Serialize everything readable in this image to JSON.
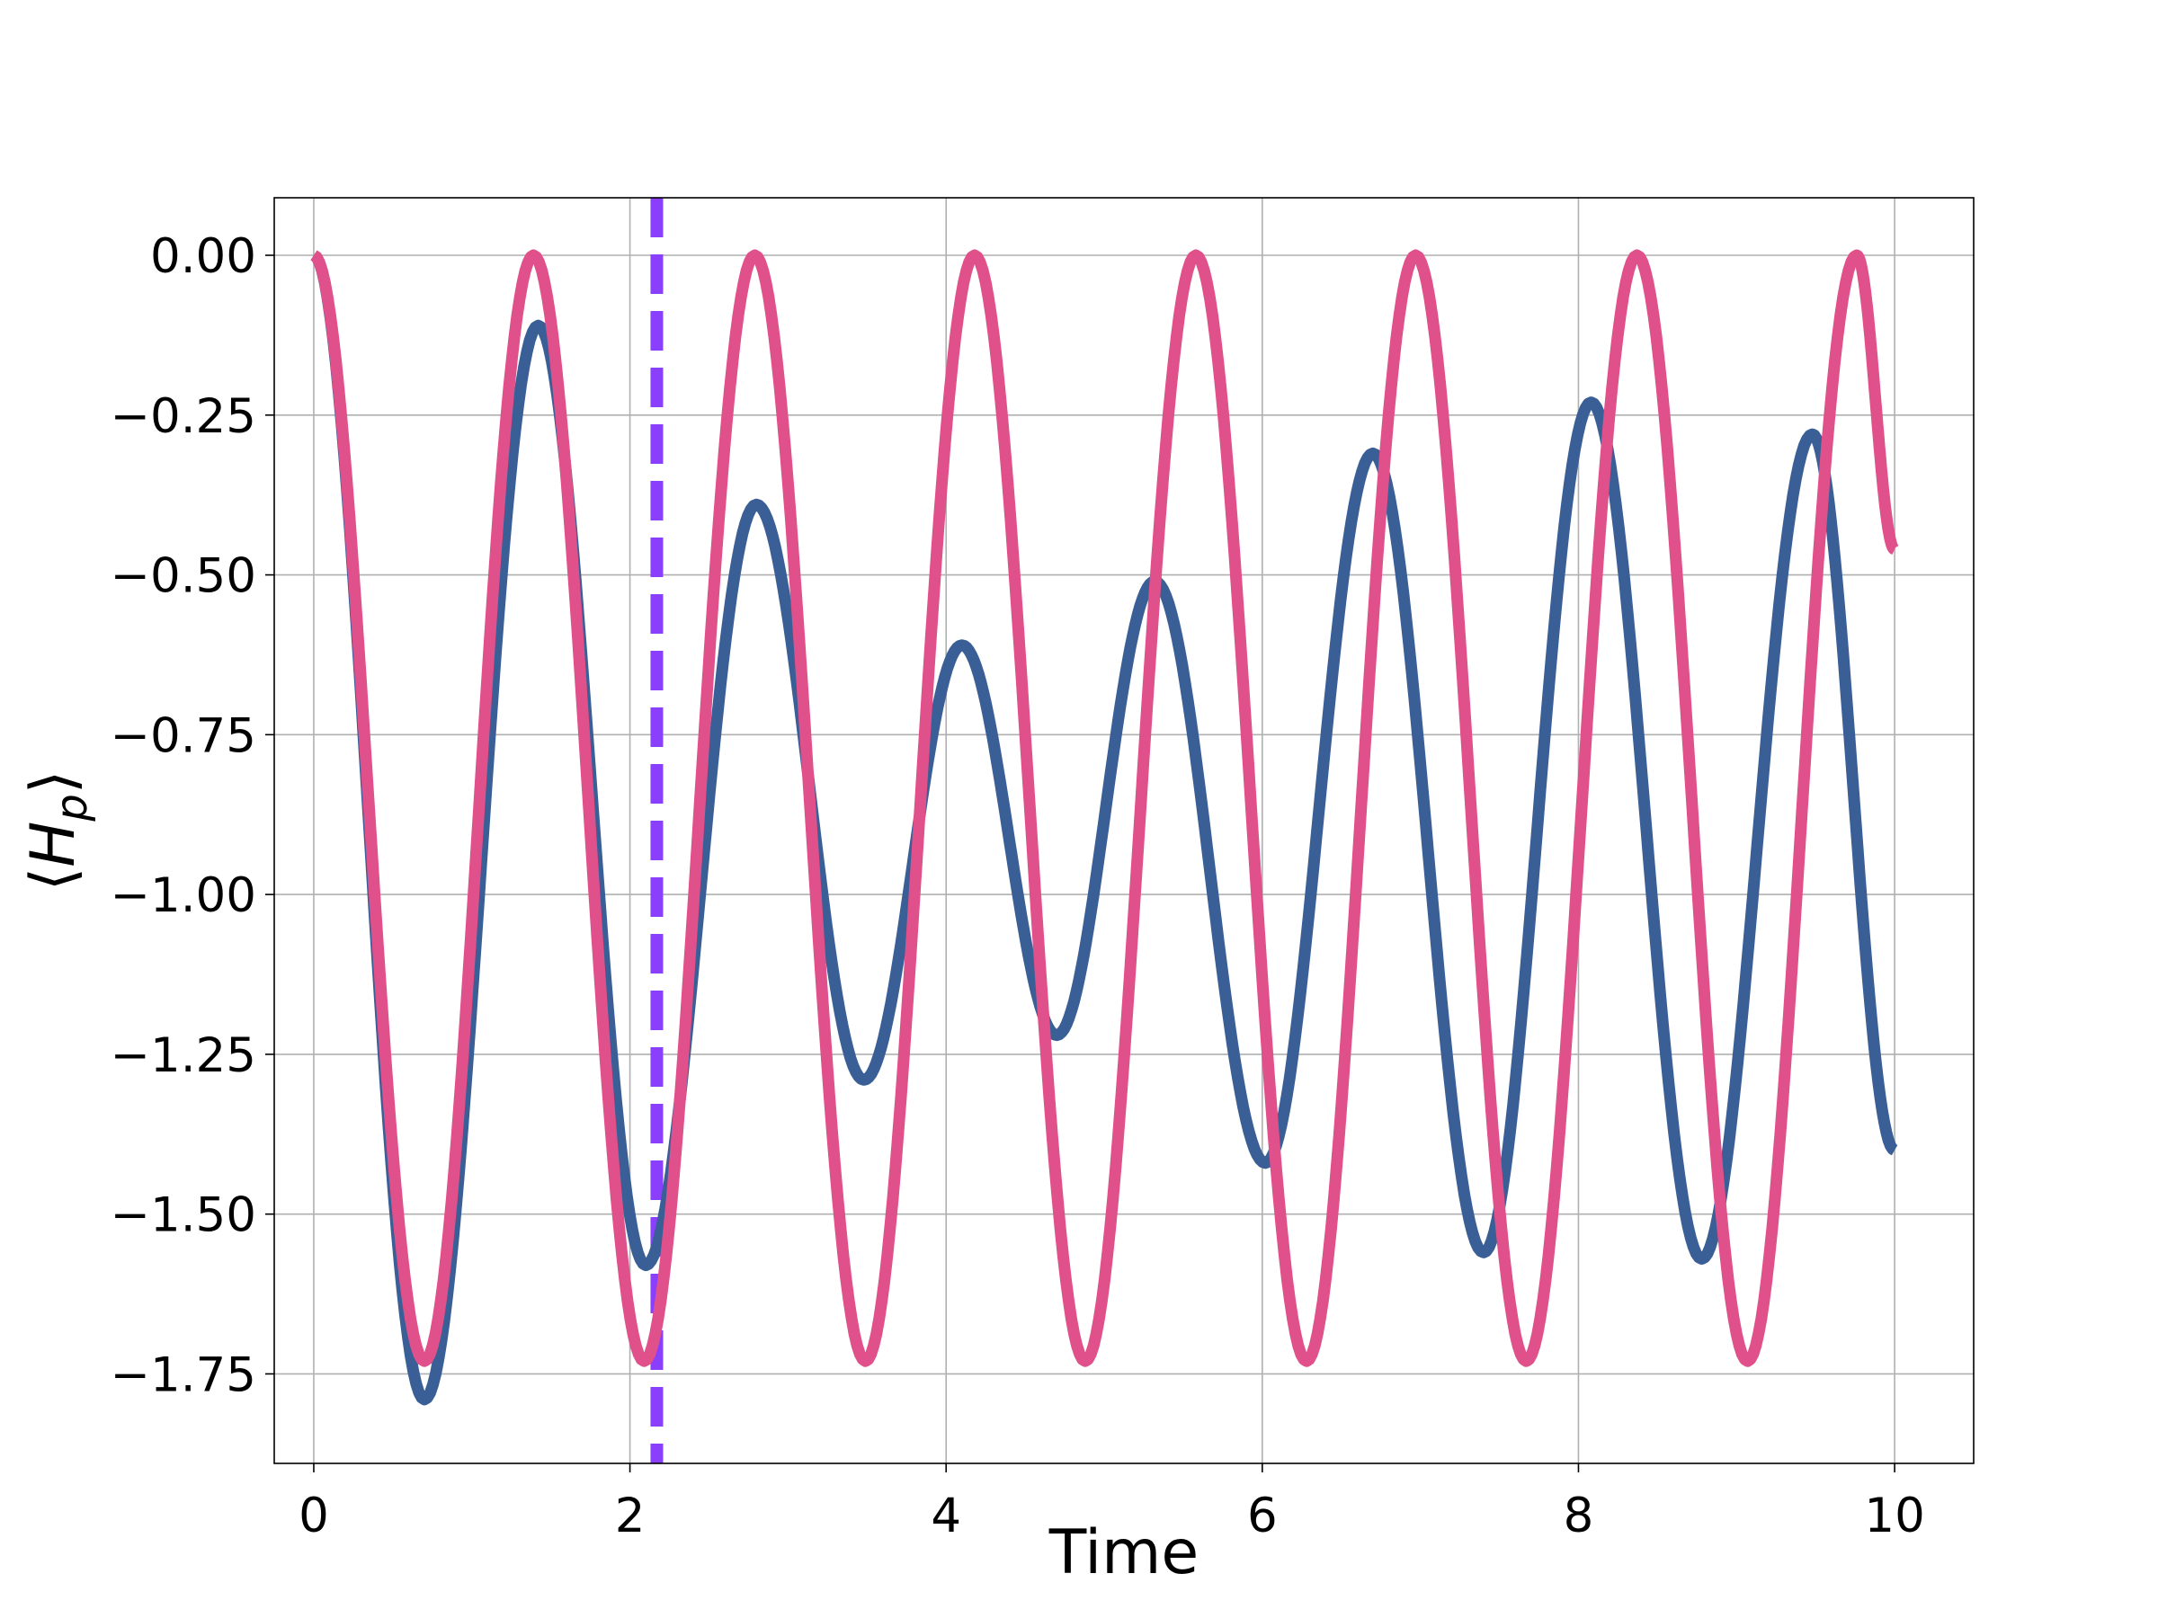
{
  "chart_data": {
    "type": "line",
    "title": "",
    "xlabel": "Time",
    "ylabel": "⟨H_p⟩",
    "xlim": [
      -0.25,
      10.5
    ],
    "ylim": [
      -1.89,
      0.09
    ],
    "x_ticks": [
      0,
      2,
      4,
      6,
      8,
      10
    ],
    "x_tick_labels": [
      "0",
      "2",
      "4",
      "6",
      "8",
      "10"
    ],
    "y_ticks": [
      0.0,
      -0.25,
      -0.5,
      -0.75,
      -1.0,
      -1.25,
      -1.5,
      -1.75
    ],
    "y_tick_labels": [
      "0.00",
      "−0.25",
      "−0.50",
      "−0.75",
      "−1.00",
      "−1.25",
      "−1.50",
      "−1.75"
    ],
    "grid": true,
    "legend": "none",
    "vertical_line": {
      "x": 2.17,
      "color": "#8a3ffc",
      "style": "dashed"
    },
    "series": [
      {
        "color": "#3a5f96",
        "points": [
          [
            0.0,
            0.0
          ],
          [
            0.7,
            -1.79
          ],
          [
            1.42,
            -0.11
          ],
          [
            2.1,
            -1.58
          ],
          [
            2.8,
            -0.39
          ],
          [
            3.48,
            -1.29
          ],
          [
            4.1,
            -0.61
          ],
          [
            4.7,
            -1.22
          ],
          [
            5.32,
            -0.51
          ],
          [
            6.02,
            -1.42
          ],
          [
            6.7,
            -0.31
          ],
          [
            7.4,
            -1.56
          ],
          [
            8.08,
            -0.23
          ],
          [
            8.78,
            -1.57
          ],
          [
            9.48,
            -0.28
          ],
          [
            10.0,
            -1.4
          ]
        ]
      },
      {
        "color": "#e0508a",
        "points": [
          [
            0.0,
            0.0
          ],
          [
            0.7,
            -1.73
          ],
          [
            1.39,
            0.0
          ],
          [
            2.09,
            -1.73
          ],
          [
            2.79,
            0.0
          ],
          [
            3.49,
            -1.73
          ],
          [
            4.18,
            0.0
          ],
          [
            4.88,
            -1.73
          ],
          [
            5.58,
            0.0
          ],
          [
            6.28,
            -1.73
          ],
          [
            6.97,
            0.0
          ],
          [
            7.67,
            -1.73
          ],
          [
            8.37,
            0.0
          ],
          [
            9.07,
            -1.73
          ],
          [
            9.76,
            0.0
          ],
          [
            10.0,
            -0.46
          ]
        ]
      }
    ]
  }
}
